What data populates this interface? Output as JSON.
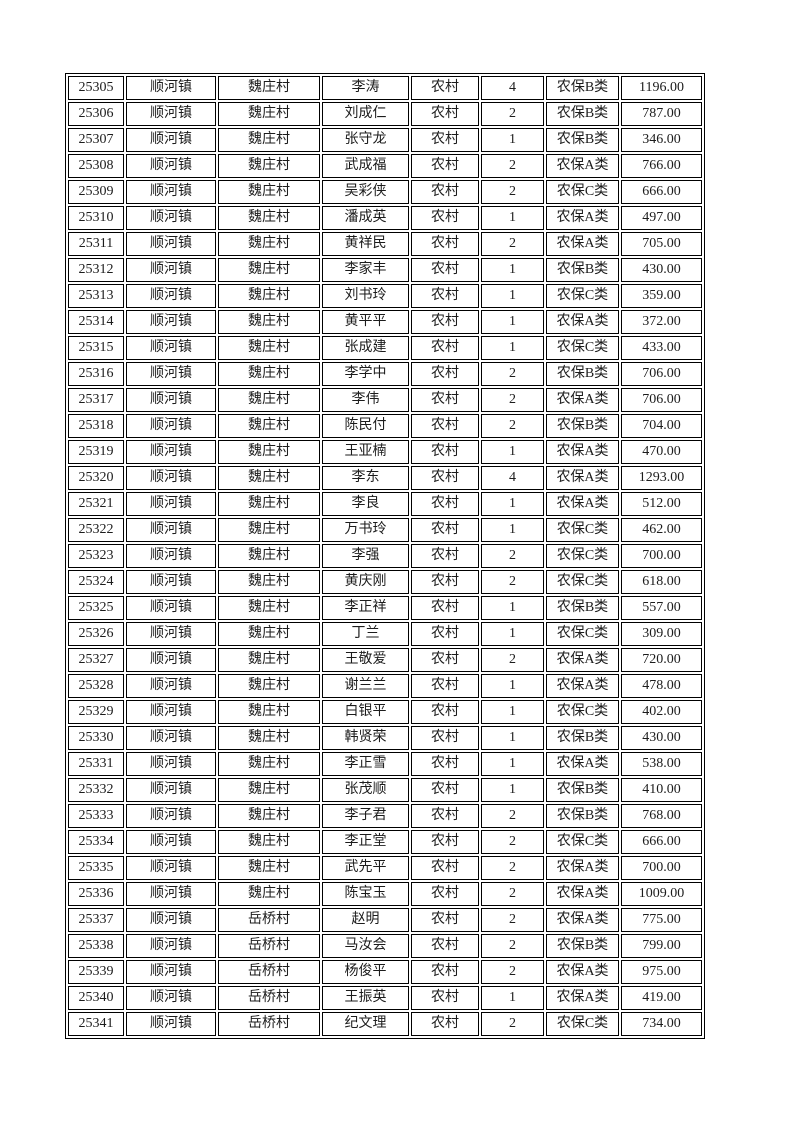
{
  "page": {
    "background_color": "#ffffff",
    "text_color": "#1c1c1c",
    "border_color": "#000000"
  },
  "table": {
    "rows": [
      [
        "25305",
        "顺河镇",
        "魏庄村",
        "李涛",
        "农村",
        "4",
        "农保B类",
        "1196.00"
      ],
      [
        "25306",
        "顺河镇",
        "魏庄村",
        "刘成仁",
        "农村",
        "2",
        "农保B类",
        "787.00"
      ],
      [
        "25307",
        "顺河镇",
        "魏庄村",
        "张守龙",
        "农村",
        "1",
        "农保B类",
        "346.00"
      ],
      [
        "25308",
        "顺河镇",
        "魏庄村",
        "武成福",
        "农村",
        "2",
        "农保A类",
        "766.00"
      ],
      [
        "25309",
        "顺河镇",
        "魏庄村",
        "吴彩侠",
        "农村",
        "2",
        "农保C类",
        "666.00"
      ],
      [
        "25310",
        "顺河镇",
        "魏庄村",
        "潘成英",
        "农村",
        "1",
        "农保A类",
        "497.00"
      ],
      [
        "25311",
        "顺河镇",
        "魏庄村",
        "黄祥民",
        "农村",
        "2",
        "农保A类",
        "705.00"
      ],
      [
        "25312",
        "顺河镇",
        "魏庄村",
        "李家丰",
        "农村",
        "1",
        "农保B类",
        "430.00"
      ],
      [
        "25313",
        "顺河镇",
        "魏庄村",
        "刘书玲",
        "农村",
        "1",
        "农保C类",
        "359.00"
      ],
      [
        "25314",
        "顺河镇",
        "魏庄村",
        "黄平平",
        "农村",
        "1",
        "农保A类",
        "372.00"
      ],
      [
        "25315",
        "顺河镇",
        "魏庄村",
        "张成建",
        "农村",
        "1",
        "农保C类",
        "433.00"
      ],
      [
        "25316",
        "顺河镇",
        "魏庄村",
        "李学中",
        "农村",
        "2",
        "农保B类",
        "706.00"
      ],
      [
        "25317",
        "顺河镇",
        "魏庄村",
        "李伟",
        "农村",
        "2",
        "农保A类",
        "706.00"
      ],
      [
        "25318",
        "顺河镇",
        "魏庄村",
        "陈民付",
        "农村",
        "2",
        "农保B类",
        "704.00"
      ],
      [
        "25319",
        "顺河镇",
        "魏庄村",
        "王亚楠",
        "农村",
        "1",
        "农保A类",
        "470.00"
      ],
      [
        "25320",
        "顺河镇",
        "魏庄村",
        "李东",
        "农村",
        "4",
        "农保A类",
        "1293.00"
      ],
      [
        "25321",
        "顺河镇",
        "魏庄村",
        "李良",
        "农村",
        "1",
        "农保A类",
        "512.00"
      ],
      [
        "25322",
        "顺河镇",
        "魏庄村",
        "万书玲",
        "农村",
        "1",
        "农保C类",
        "462.00"
      ],
      [
        "25323",
        "顺河镇",
        "魏庄村",
        "李强",
        "农村",
        "2",
        "农保C类",
        "700.00"
      ],
      [
        "25324",
        "顺河镇",
        "魏庄村",
        "黄庆刚",
        "农村",
        "2",
        "农保C类",
        "618.00"
      ],
      [
        "25325",
        "顺河镇",
        "魏庄村",
        "李正祥",
        "农村",
        "1",
        "农保B类",
        "557.00"
      ],
      [
        "25326",
        "顺河镇",
        "魏庄村",
        "丁兰",
        "农村",
        "1",
        "农保C类",
        "309.00"
      ],
      [
        "25327",
        "顺河镇",
        "魏庄村",
        "王敬爱",
        "农村",
        "2",
        "农保A类",
        "720.00"
      ],
      [
        "25328",
        "顺河镇",
        "魏庄村",
        "谢兰兰",
        "农村",
        "1",
        "农保A类",
        "478.00"
      ],
      [
        "25329",
        "顺河镇",
        "魏庄村",
        "白银平",
        "农村",
        "1",
        "农保C类",
        "402.00"
      ],
      [
        "25330",
        "顺河镇",
        "魏庄村",
        "韩贤荣",
        "农村",
        "1",
        "农保B类",
        "430.00"
      ],
      [
        "25331",
        "顺河镇",
        "魏庄村",
        "李正雪",
        "农村",
        "1",
        "农保A类",
        "538.00"
      ],
      [
        "25332",
        "顺河镇",
        "魏庄村",
        "张茂顺",
        "农村",
        "1",
        "农保B类",
        "410.00"
      ],
      [
        "25333",
        "顺河镇",
        "魏庄村",
        "李子君",
        "农村",
        "2",
        "农保B类",
        "768.00"
      ],
      [
        "25334",
        "顺河镇",
        "魏庄村",
        "李正堂",
        "农村",
        "2",
        "农保C类",
        "666.00"
      ],
      [
        "25335",
        "顺河镇",
        "魏庄村",
        "武先平",
        "农村",
        "2",
        "农保A类",
        "700.00"
      ],
      [
        "25336",
        "顺河镇",
        "魏庄村",
        "陈宝玉",
        "农村",
        "2",
        "农保A类",
        "1009.00"
      ],
      [
        "25337",
        "顺河镇",
        "岳桥村",
        "赵明",
        "农村",
        "2",
        "农保A类",
        "775.00"
      ],
      [
        "25338",
        "顺河镇",
        "岳桥村",
        "马汝会",
        "农村",
        "2",
        "农保B类",
        "799.00"
      ],
      [
        "25339",
        "顺河镇",
        "岳桥村",
        "杨俊平",
        "农村",
        "2",
        "农保A类",
        "975.00"
      ],
      [
        "25340",
        "顺河镇",
        "岳桥村",
        "王振英",
        "农村",
        "1",
        "农保A类",
        "419.00"
      ],
      [
        "25341",
        "顺河镇",
        "岳桥村",
        "纪文理",
        "农村",
        "2",
        "农保C类",
        "734.00"
      ]
    ],
    "column_semantics": [
      "record-id",
      "town",
      "village",
      "person-name",
      "resident-type",
      "person-count",
      "insurance-category",
      "amount"
    ]
  }
}
